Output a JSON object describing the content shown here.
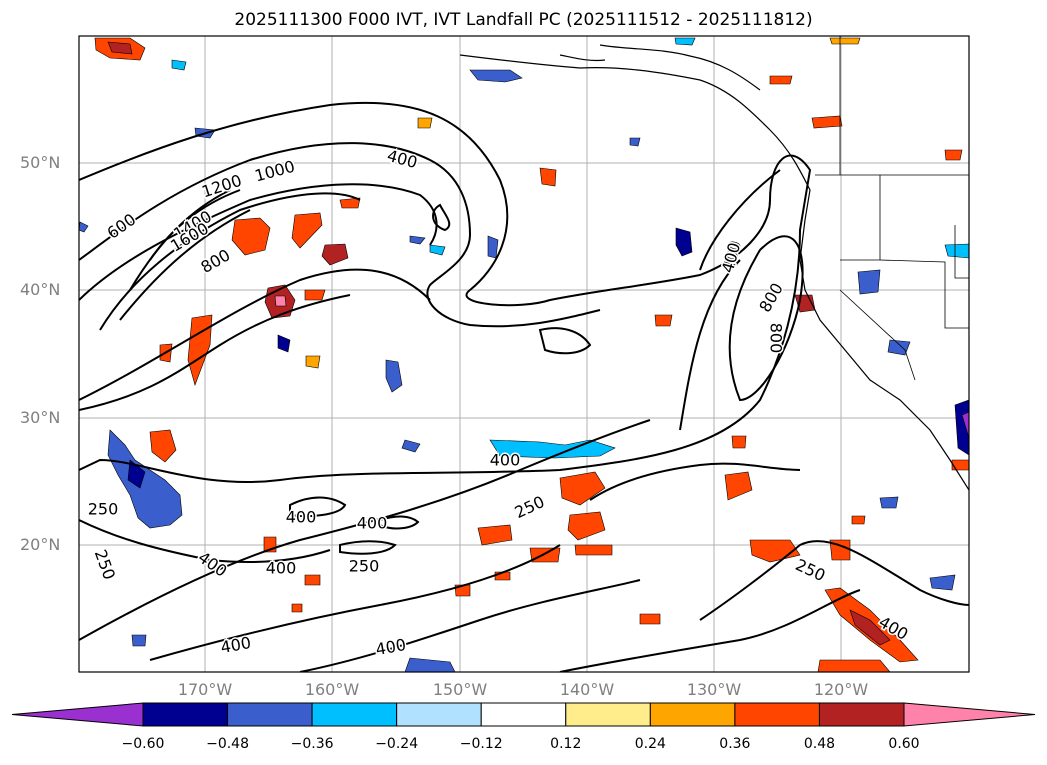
{
  "title": "2025111300 F000 IVT, IVT Landfall PC (2025111512 - 2025111812)",
  "lat_labels": [
    "50°N",
    "40°N",
    "30°N",
    "20°N"
  ],
  "lon_labels": [
    "170°W",
    "160°W",
    "150°W",
    "140°W",
    "130°W",
    "120°W"
  ],
  "contour_labels": [
    "1000",
    "1200",
    "1400",
    "1600",
    "600",
    "800",
    "400",
    "400",
    "800",
    "400",
    "250",
    "250",
    "250",
    "400",
    "400",
    "400",
    "250",
    "400",
    "400",
    "400",
    "250",
    "400",
    "400",
    "800"
  ],
  "colorbar": {
    "ticks": [
      "−0.60",
      "−0.48",
      "−0.36",
      "−0.24",
      "−0.12",
      "0.12",
      "0.24",
      "0.36",
      "0.48",
      "0.60"
    ],
    "colors": [
      "#9b30d0",
      "#000090",
      "#3a5fcd",
      "#00bfff",
      "#b0e2ff",
      "#ffffff",
      "#ffec8b",
      "#ffa500",
      "#ff4500",
      "#b22222",
      "#ff82ab"
    ]
  }
}
